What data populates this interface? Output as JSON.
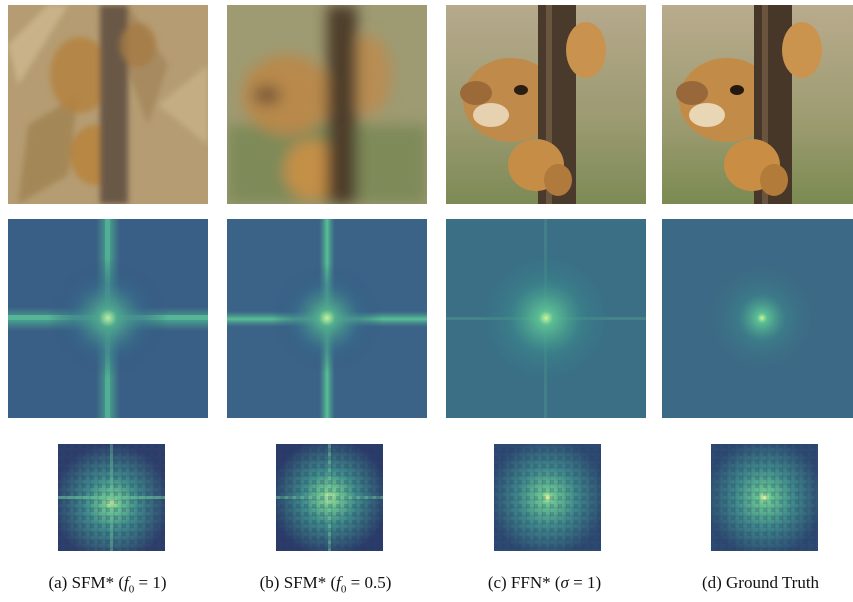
{
  "columns": [
    {
      "label": "(a) SFM* (",
      "var": "f",
      "sub": "0",
      "eq": " = 1)",
      "tail": ""
    },
    {
      "label": "(b) SFM* (",
      "var": "f",
      "sub": "0",
      "eq": " = 0.5)",
      "tail": ""
    },
    {
      "label": "(c) FFN* (",
      "var": "σ",
      "sub": "",
      "eq": " = 1)",
      "tail": ""
    },
    {
      "label": "(d) Ground Truth",
      "var": "",
      "sub": "",
      "eq": "",
      "tail": ""
    }
  ],
  "colors": {
    "spectrum_bg": "#3a5f86",
    "spectrum_bright": "#5fc59a",
    "tree": "#4a3a2c",
    "fur": "#c08a4a",
    "background_green": "#8a9a5a"
  }
}
